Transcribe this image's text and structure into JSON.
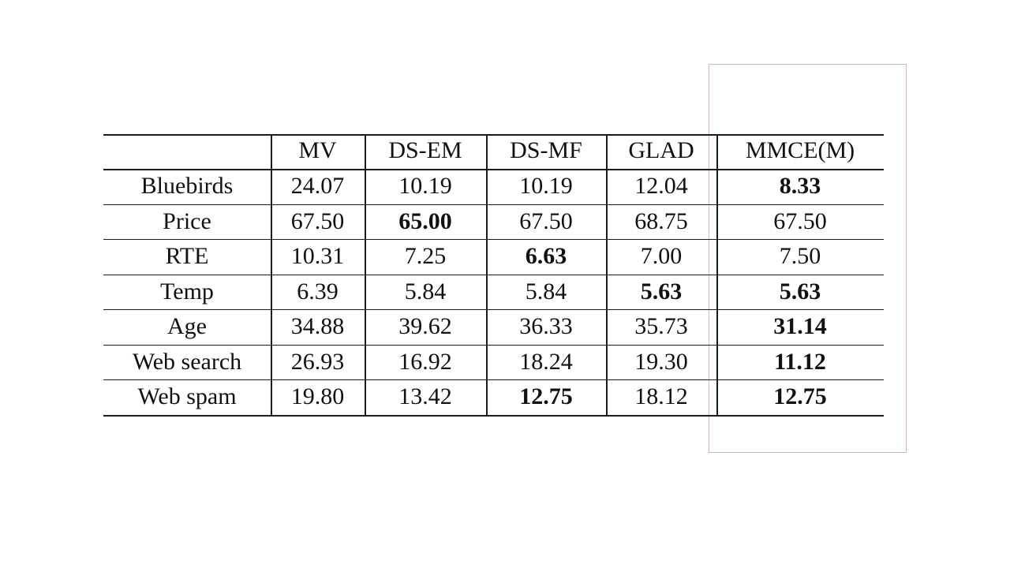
{
  "table": {
    "columns": [
      "MV",
      "DS-EM",
      "DS-MF",
      "GLAD",
      "MMCE(M)"
    ],
    "rows": [
      {
        "label": "Bluebirds",
        "cells": [
          "24.07",
          "10.19",
          "10.19",
          "12.04",
          "8.33"
        ],
        "bold": [
          4
        ]
      },
      {
        "label": "Price",
        "cells": [
          "67.50",
          "65.00",
          "67.50",
          "68.75",
          "67.50"
        ],
        "bold": [
          1
        ]
      },
      {
        "label": "RTE",
        "cells": [
          "10.31",
          "7.25",
          "6.63",
          "7.00",
          "7.50"
        ],
        "bold": [
          2
        ]
      },
      {
        "label": "Temp",
        "cells": [
          "6.39",
          "5.84",
          "5.84",
          "5.63",
          "5.63"
        ],
        "bold": [
          3,
          4
        ]
      },
      {
        "label": "Age",
        "cells": [
          "34.88",
          "39.62",
          "36.33",
          "35.73",
          "31.14"
        ],
        "bold": [
          4
        ]
      },
      {
        "label": "Web search",
        "cells": [
          "26.93",
          "16.92",
          "18.24",
          "19.30",
          "11.12"
        ],
        "bold": [
          4
        ]
      },
      {
        "label": "Web spam",
        "cells": [
          "19.80",
          "13.42",
          "12.75",
          "18.12",
          "12.75"
        ],
        "bold": [
          2,
          4
        ]
      }
    ]
  }
}
